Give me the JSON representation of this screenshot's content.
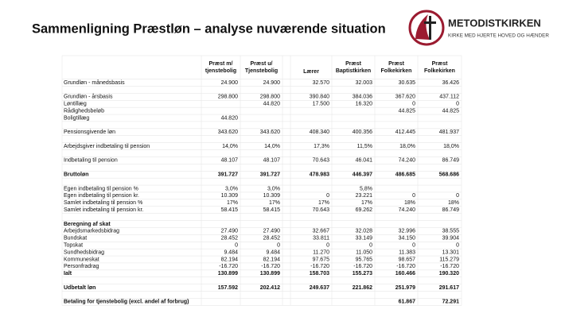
{
  "header": {
    "title": "Sammenligning Præstløn – analyse nuværende situation",
    "logo_name": "METODISTKIRKEN",
    "logo_tagline": "KIRKE MED HJERTE HOVED OG HÆNDER"
  },
  "table": {
    "columns": [
      [
        "Præst m/",
        "tjenstebolig"
      ],
      [
        "Præst u/",
        "Tjenstebolig"
      ],
      [
        "Lærer"
      ],
      [
        "Præst",
        "Baptistkirken"
      ],
      [
        "Præst",
        "Folkekirken"
      ],
      [
        "Præst",
        "Folkekirken"
      ]
    ],
    "sections": [
      [
        {
          "label": "Grundløn - månedsbasis",
          "cells": [
            "24.900",
            "24.900",
            "32.570",
            "32.003",
            "30.635",
            "36.426"
          ]
        }
      ],
      [
        {
          "label": "Grundløn - årsbasis",
          "cells": [
            "298.800",
            "298.800",
            "390.840",
            "384.036",
            "367.620",
            "437.112"
          ]
        },
        {
          "label": "Løntillæg",
          "cells": [
            null,
            "44.820",
            "17.500",
            "16.320",
            "0",
            "0"
          ]
        },
        {
          "label": "Rådighedsbeløb",
          "cells": [
            null,
            null,
            null,
            null,
            "44.825",
            "44.825"
          ]
        },
        {
          "label": "Boligtillæg",
          "cells": [
            "44.820",
            null,
            null,
            null,
            null,
            null
          ]
        }
      ],
      [
        {
          "label": "Pensionsgivende løn",
          "cells": [
            "343.620",
            "343.620",
            "408.340",
            "400.356",
            "412.445",
            "481.937"
          ]
        }
      ],
      [
        {
          "label": "Arbejdsgiver indbetaling til pension",
          "cells": [
            "14,0%",
            "14,0%",
            "17,3%",
            "11,5%",
            "18,0%",
            "18,0%"
          ]
        }
      ],
      [
        {
          "label": "Indbetaling til pension",
          "cells": [
            "48.107",
            "48.107",
            "70.643",
            "46.041",
            "74.240",
            "86.749"
          ]
        }
      ],
      [
        {
          "label": "Bruttoløn",
          "bold": true,
          "cells": [
            "391.727",
            "391.727",
            "478.983",
            "446.397",
            "486.685",
            "568.686"
          ]
        }
      ],
      [
        {
          "label": "Egen indbetaling til pension %",
          "cells": [
            "3,0%",
            "3,0%",
            null,
            "5,8%",
            null,
            null
          ]
        },
        {
          "label": "Egen indbetaling til pension kr.",
          "cells": [
            "10.309",
            "10.309",
            "0",
            "23.221",
            "0",
            "0"
          ]
        },
        {
          "label": "Samlet indbetaling til pension %",
          "cells": [
            "17%",
            "17%",
            "17%",
            "17%",
            "18%",
            "18%"
          ]
        },
        {
          "label": "Samlet indbetaling til pension kr.",
          "cells": [
            "58.415",
            "58.415",
            "70.643",
            "69.262",
            "74.240",
            "86.749"
          ]
        }
      ],
      [
        {
          "label": "Beregning af skat",
          "bold": true,
          "cells": [
            null,
            null,
            null,
            null,
            null,
            null
          ]
        },
        {
          "label": "Arbejdsmarkedsbidrag",
          "cells": [
            "27.490",
            "27.490",
            "32.667",
            "32.028",
            "32.996",
            "38.555"
          ]
        },
        {
          "label": "Bundskat",
          "cells": [
            "28.452",
            "28.452",
            "33.811",
            "33.149",
            "34.150",
            "39.904"
          ]
        },
        {
          "label": "Topskat",
          "cells": [
            "0",
            "0",
            "0",
            "0",
            "0",
            "0"
          ]
        },
        {
          "label": "Sundhedsbidrag",
          "cells": [
            "9.484",
            "9.484",
            "11.270",
            "11.050",
            "11.383",
            "13.301"
          ]
        },
        {
          "label": "Kommuneskat",
          "cells": [
            "82.194",
            "82.194",
            "97.675",
            "95.765",
            "98.657",
            "115.279"
          ]
        },
        {
          "label": "Personfradrag",
          "cells": [
            "-16.720",
            "-16.720",
            "-16.720",
            "-16.720",
            "-16.720",
            "-16.720"
          ]
        },
        {
          "label": "Ialt",
          "bold": true,
          "cells": [
            "130.899",
            "130.899",
            "158.703",
            "155.273",
            "160.466",
            "190.320"
          ]
        }
      ],
      [
        {
          "label": "Udbetalt løn",
          "bold": true,
          "cells": [
            "157.592",
            "202.412",
            "249.637",
            "221.862",
            "251.979",
            "291.617"
          ]
        }
      ],
      [
        {
          "label": "Betaling for tjenstebolig (excl. andel af forbrug)",
          "bold": true,
          "cells": [
            null,
            null,
            null,
            null,
            "61.867",
            "72.291"
          ]
        }
      ]
    ]
  }
}
